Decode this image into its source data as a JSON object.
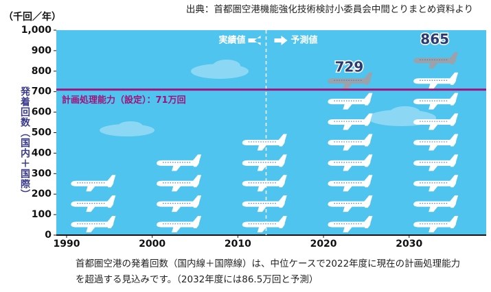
{
  "chart_data": {
    "type": "pictograph",
    "source": "出典：首都圏空港機能強化技術検討小委員会中間とりまとめ資料より",
    "unit": "（千回／年）",
    "y_label": "発着回数（国内＋国際）",
    "x": [
      1993,
      2003,
      2013,
      2023,
      2033
    ],
    "values": [
      300,
      400,
      500,
      729,
      865
    ],
    "value_labels": [
      null,
      null,
      null,
      "729",
      "865"
    ],
    "color": "#ffffff",
    "partial_color": "#9aa3ab",
    "background": "#4fc4ef",
    "xlim": [
      1988.8,
      2039
    ],
    "xticks": [
      1990,
      2000,
      2010,
      2020,
      2030
    ],
    "ylim": [
      0,
      1000
    ],
    "yticks": [
      0,
      100,
      200,
      300,
      400,
      500,
      600,
      700,
      800,
      900,
      {
        "value": 1000,
        "label": "1,000"
      }
    ],
    "reference_line": {
      "value": 710,
      "label": "計画処理能力（設定）：71万回",
      "color": "#a0127a"
    },
    "divider": {
      "x": 2013.3,
      "left_label": "実績値",
      "right_label": "予測値"
    },
    "caption": [
      "首都圏空港の発着回数（国内線＋国際線）は、中位ケースで2022年度に現在の計画処理能力",
      "を超過する見込みです。（2032年度には86.5万回と予測）"
    ]
  }
}
